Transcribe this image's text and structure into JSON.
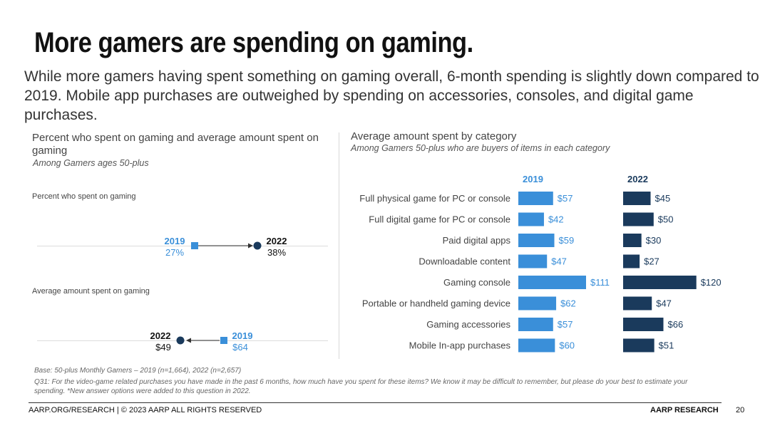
{
  "slide": {
    "title": "More gamers are spending on gaming.",
    "subtitle": "While more gamers having spent something on gaming overall, 6-month spending is slightly down compared to 2019. Mobile app purchases are outweighed by spending on accessories, consoles, and digital game purchases."
  },
  "left_panel": {
    "title": "Percent who spent on gaming and average amount spent on gaming",
    "subtitle": "Among Gamers ages 50-plus",
    "percent_label": "Percent who spent on gaming",
    "amount_label": "Average amount spent on gaming",
    "percent": {
      "y2019_label": "2019",
      "y2019_value": "27%",
      "y2022_label": "2022",
      "y2022_value": "38%"
    },
    "amount": {
      "y2022_label": "2022",
      "y2022_value": "$49",
      "y2019_label": "2019",
      "y2019_value": "$64"
    }
  },
  "right_panel": {
    "title": "Average amount spent by category",
    "subtitle": "Among Gamers 50-plus who are buyers of items in each category"
  },
  "colors": {
    "y2019": "#3a8fd9",
    "y2022": "#1a3a5c"
  },
  "chart_data": [
    {
      "type": "scatter",
      "title": "Percent who spent on gaming",
      "series": [
        {
          "name": "2019",
          "values": [
            27
          ]
        },
        {
          "name": "2022",
          "values": [
            38
          ]
        }
      ],
      "unit": "%"
    },
    {
      "type": "scatter",
      "title": "Average amount spent on gaming",
      "series": [
        {
          "name": "2019",
          "values": [
            64
          ]
        },
        {
          "name": "2022",
          "values": [
            49
          ]
        }
      ],
      "unit": "$"
    },
    {
      "type": "bar",
      "orientation": "horizontal",
      "title": "Average amount spent by category",
      "categories": [
        "Full physical game for PC or console",
        "Full digital game for PC or console",
        "Paid digital apps",
        "Downloadable content",
        "Gaming console",
        "Portable or handheld gaming device",
        "Gaming accessories",
        "Mobile In-app purchases"
      ],
      "series": [
        {
          "name": "2019",
          "values": [
            57,
            42,
            59,
            47,
            111,
            62,
            57,
            60
          ],
          "labels": [
            "$57",
            "$42",
            "$59",
            "$47",
            "$111",
            "$62",
            "$57",
            "$60"
          ]
        },
        {
          "name": "2022",
          "values": [
            45,
            50,
            30,
            27,
            120,
            47,
            66,
            51
          ],
          "labels": [
            "$45",
            "$50",
            "$30",
            "$27",
            "$120",
            "$47",
            "$66",
            "$51"
          ]
        }
      ],
      "grid": false
    }
  ],
  "footnotes": {
    "base": "Base: 50-plus Monthly Gamers – 2019 (n=1,664), 2022 (n=2,657)",
    "question": "Q31: For the video-game related purchases you have made in the past 6 months, how much have you spent for these items?  We know it may be difficult to remember, but please do your best to estimate your spending. *New answer options were added to this question in 2022."
  },
  "footer": {
    "left": "AARP.ORG/RESEARCH | © 2023 AARP ALL RIGHTS RESERVED",
    "right": "AARP RESEARCH",
    "page": "20"
  }
}
